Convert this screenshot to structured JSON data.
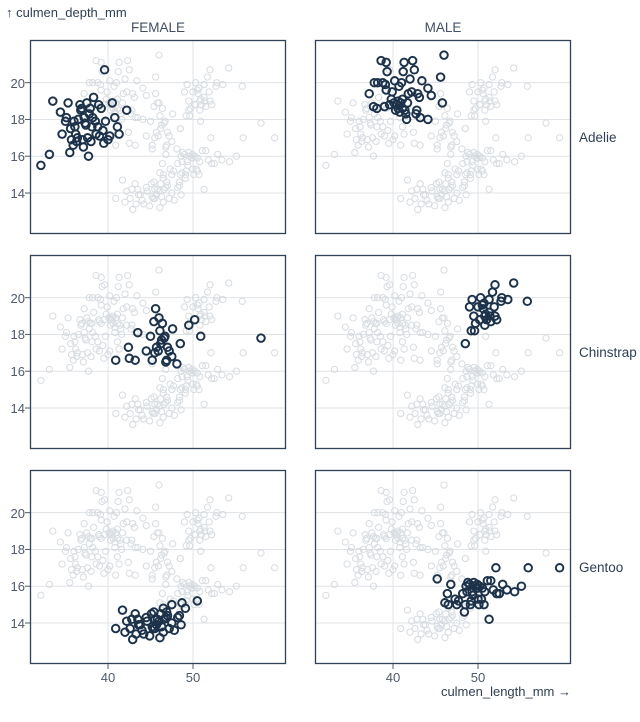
{
  "colors": {
    "highlight": "#1c324a",
    "background_point": "#cdd3da",
    "frame": "#2f4258",
    "grid": "#e0e3e7",
    "tick_label": "#4d5b6b",
    "header_text": "#415062",
    "label_text": "#2e3f53"
  },
  "chart_data": {
    "type": "scatter",
    "y_axis_title": "↑ culmen_depth_mm",
    "x_axis_title": "culmen_length_mm →",
    "xlabel": "culmen_length_mm",
    "ylabel": "culmen_depth_mm",
    "facet_columns": [
      "FEMALE",
      "MALE"
    ],
    "facet_rows": [
      "Adelie",
      "Chinstrap",
      "Gentoo"
    ],
    "x_ticks": [
      40,
      50
    ],
    "y_ticks": [
      14,
      16,
      18,
      20
    ],
    "xlim": [
      30.82,
      60.94
    ],
    "ylim": [
      11.77,
      22.32
    ],
    "grid": true,
    "legend": "none",
    "note": "Each facet highlights that species+sex subset in dark navy open circles over all penguins shown as faint gray open circles.",
    "series": [
      {
        "species": "Adelie",
        "sex": "FEMALE",
        "points": [
          [
            32.1,
            15.5
          ],
          [
            33.1,
            16.1
          ],
          [
            33.5,
            19.0
          ],
          [
            34.4,
            18.4
          ],
          [
            34.6,
            17.2
          ],
          [
            35.0,
            17.9
          ],
          [
            35.1,
            18.1
          ],
          [
            35.3,
            18.9
          ],
          [
            35.5,
            16.2
          ],
          [
            35.6,
            17.5
          ],
          [
            35.7,
            16.9
          ],
          [
            35.9,
            16.6
          ],
          [
            36.0,
            17.9
          ],
          [
            36.1,
            17.6
          ],
          [
            36.2,
            17.2
          ],
          [
            36.3,
            16.8
          ],
          [
            36.4,
            17.0
          ],
          [
            36.5,
            18.0
          ],
          [
            36.7,
            18.8
          ],
          [
            36.8,
            18.5
          ],
          [
            36.9,
            18.6
          ],
          [
            37.0,
            16.9
          ],
          [
            37.1,
            16.5
          ],
          [
            37.2,
            18.1
          ],
          [
            37.3,
            17.8
          ],
          [
            37.4,
            17.7
          ],
          [
            37.5,
            18.9
          ],
          [
            37.6,
            17.0
          ],
          [
            37.7,
            16.0
          ],
          [
            37.8,
            18.3
          ],
          [
            37.9,
            18.6
          ],
          [
            38.0,
            16.8
          ],
          [
            38.1,
            17.6
          ],
          [
            38.2,
            18.1
          ],
          [
            38.3,
            19.2
          ],
          [
            38.5,
            17.9
          ],
          [
            38.6,
            17.2
          ],
          [
            38.8,
            17.6
          ],
          [
            38.9,
            18.8
          ],
          [
            39.0,
            17.1
          ],
          [
            39.2,
            18.6
          ],
          [
            39.4,
            17.4
          ],
          [
            39.5,
            16.7
          ],
          [
            39.6,
            20.7
          ],
          [
            39.7,
            17.9
          ],
          [
            40.0,
            16.9
          ],
          [
            40.2,
            17.1
          ],
          [
            40.5,
            18.9
          ],
          [
            40.8,
            18.1
          ],
          [
            41.1,
            17.6
          ],
          [
            41.3,
            17.2
          ],
          [
            42.2,
            18.5
          ]
        ]
      },
      {
        "species": "Adelie",
        "sex": "MALE",
        "points": [
          [
            37.2,
            19.4
          ],
          [
            37.7,
            18.7
          ],
          [
            37.8,
            20.0
          ],
          [
            38.1,
            18.6
          ],
          [
            38.2,
            20.0
          ],
          [
            38.6,
            21.2
          ],
          [
            38.8,
            20.0
          ],
          [
            39.0,
            18.7
          ],
          [
            39.1,
            19.9
          ],
          [
            39.2,
            19.6
          ],
          [
            39.2,
            21.1
          ],
          [
            39.3,
            20.6
          ],
          [
            39.6,
            18.8
          ],
          [
            39.8,
            19.1
          ],
          [
            39.9,
            19.5
          ],
          [
            40.1,
            18.9
          ],
          [
            40.2,
            20.1
          ],
          [
            40.3,
            18.5
          ],
          [
            40.4,
            18.8
          ],
          [
            40.6,
            18.6
          ],
          [
            40.6,
            19.0
          ],
          [
            40.7,
            19.8
          ],
          [
            40.8,
            18.4
          ],
          [
            40.9,
            18.9
          ],
          [
            41.0,
            20.0
          ],
          [
            41.1,
            18.6
          ],
          [
            41.1,
            19.1
          ],
          [
            41.2,
            20.6
          ],
          [
            41.3,
            21.1
          ],
          [
            41.4,
            18.5
          ],
          [
            41.5,
            18.3
          ],
          [
            41.6,
            18.0
          ],
          [
            41.7,
            18.9
          ],
          [
            41.8,
            19.4
          ],
          [
            42.0,
            20.2
          ],
          [
            42.2,
            19.5
          ],
          [
            42.3,
            21.2
          ],
          [
            42.5,
            20.7
          ],
          [
            42.7,
            18.3
          ],
          [
            42.8,
            18.5
          ],
          [
            42.9,
            19.4
          ],
          [
            43.1,
            19.2
          ],
          [
            43.2,
            18.1
          ],
          [
            43.4,
            20.1
          ],
          [
            44.1,
            19.7
          ],
          [
            44.1,
            18.0
          ],
          [
            44.5,
            19.3
          ],
          [
            45.6,
            20.3
          ],
          [
            45.8,
            18.9
          ],
          [
            46.0,
            21.5
          ]
        ]
      },
      {
        "species": "Chinstrap",
        "sex": "FEMALE",
        "points": [
          [
            40.9,
            16.6
          ],
          [
            42.4,
            17.3
          ],
          [
            42.5,
            16.7
          ],
          [
            43.2,
            16.6
          ],
          [
            43.5,
            18.1
          ],
          [
            44.5,
            17.1
          ],
          [
            45.0,
            17.9
          ],
          [
            45.2,
            16.6
          ],
          [
            45.4,
            18.7
          ],
          [
            45.5,
            17.0
          ],
          [
            45.6,
            19.4
          ],
          [
            45.7,
            17.3
          ],
          [
            45.9,
            17.1
          ],
          [
            46.0,
            18.9
          ],
          [
            46.1,
            18.2
          ],
          [
            46.2,
            17.5
          ],
          [
            46.3,
            17.7
          ],
          [
            46.4,
            18.6
          ],
          [
            46.6,
            17.8
          ],
          [
            46.7,
            17.9
          ],
          [
            46.8,
            16.5
          ],
          [
            46.9,
            16.6
          ],
          [
            47.0,
            17.3
          ],
          [
            47.2,
            17.1
          ],
          [
            47.5,
            16.8
          ],
          [
            47.6,
            18.3
          ],
          [
            48.1,
            16.4
          ],
          [
            48.5,
            17.5
          ],
          [
            49.5,
            18.5
          ],
          [
            50.2,
            18.8
          ],
          [
            50.9,
            17.9
          ],
          [
            58.0,
            17.8
          ]
        ]
      },
      {
        "species": "Chinstrap",
        "sex": "MALE",
        "points": [
          [
            48.5,
            17.5
          ],
          [
            49.0,
            19.5
          ],
          [
            49.2,
            18.2
          ],
          [
            49.3,
            19.9
          ],
          [
            49.5,
            19.0
          ],
          [
            49.6,
            18.2
          ],
          [
            49.7,
            18.6
          ],
          [
            50.0,
            19.5
          ],
          [
            50.2,
            18.8
          ],
          [
            50.3,
            20.0
          ],
          [
            50.5,
            19.6
          ],
          [
            50.6,
            19.4
          ],
          [
            50.7,
            19.7
          ],
          [
            50.8,
            19.0
          ],
          [
            50.8,
            18.5
          ],
          [
            50.9,
            19.1
          ],
          [
            51.0,
            18.8
          ],
          [
            51.3,
            19.2
          ],
          [
            51.3,
            19.9
          ],
          [
            51.4,
            19.0
          ],
          [
            51.5,
            18.7
          ],
          [
            51.7,
            20.3
          ],
          [
            51.9,
            19.5
          ],
          [
            52.0,
            19.0
          ],
          [
            52.0,
            20.7
          ],
          [
            52.2,
            18.8
          ],
          [
            52.7,
            19.8
          ],
          [
            52.8,
            20.0
          ],
          [
            53.5,
            19.9
          ],
          [
            54.2,
            20.8
          ],
          [
            55.8,
            19.8
          ]
        ]
      },
      {
        "species": "Gentoo",
        "sex": "FEMALE",
        "points": [
          [
            40.9,
            13.7
          ],
          [
            41.7,
            14.7
          ],
          [
            42.0,
            13.5
          ],
          [
            42.2,
            14.1
          ],
          [
            42.6,
            13.7
          ],
          [
            42.8,
            14.2
          ],
          [
            42.9,
            13.1
          ],
          [
            43.2,
            14.5
          ],
          [
            43.3,
            13.4
          ],
          [
            43.5,
            14.2
          ],
          [
            43.6,
            13.9
          ],
          [
            43.8,
            13.9
          ],
          [
            44.0,
            13.6
          ],
          [
            44.2,
            13.4
          ],
          [
            44.5,
            14.3
          ],
          [
            44.6,
            14.1
          ],
          [
            44.9,
            13.3
          ],
          [
            45.1,
            14.5
          ],
          [
            45.2,
            13.8
          ],
          [
            45.3,
            13.7
          ],
          [
            45.4,
            14.6
          ],
          [
            45.5,
            13.7
          ],
          [
            45.5,
            14.2
          ],
          [
            45.7,
            13.9
          ],
          [
            45.8,
            14.2
          ],
          [
            46.0,
            14.1
          ],
          [
            46.1,
            13.2
          ],
          [
            46.2,
            14.5
          ],
          [
            46.3,
            13.8
          ],
          [
            46.5,
            13.5
          ],
          [
            46.5,
            14.8
          ],
          [
            46.6,
            14.2
          ],
          [
            46.8,
            14.3
          ],
          [
            46.9,
            14.6
          ],
          [
            47.0,
            14.4
          ],
          [
            47.2,
            13.7
          ],
          [
            47.5,
            14.0
          ],
          [
            47.5,
            15.0
          ],
          [
            47.8,
            13.6
          ],
          [
            48.2,
            14.3
          ],
          [
            48.4,
            14.4
          ],
          [
            48.6,
            13.9
          ],
          [
            48.7,
            15.1
          ],
          [
            49.1,
            14.8
          ],
          [
            50.5,
            15.2
          ]
        ]
      },
      {
        "species": "Gentoo",
        "sex": "MALE",
        "points": [
          [
            45.2,
            16.4
          ],
          [
            46.1,
            15.1
          ],
          [
            46.4,
            15.6
          ],
          [
            46.5,
            15.0
          ],
          [
            46.8,
            16.1
          ],
          [
            47.3,
            15.3
          ],
          [
            47.5,
            15.0
          ],
          [
            47.7,
            15.2
          ],
          [
            48.2,
            15.6
          ],
          [
            48.4,
            14.6
          ],
          [
            48.5,
            15.0
          ],
          [
            48.6,
            16.0
          ],
          [
            48.7,
            15.7
          ],
          [
            48.8,
            16.2
          ],
          [
            49.0,
            16.1
          ],
          [
            49.1,
            15.0
          ],
          [
            49.2,
            15.2
          ],
          [
            49.3,
            15.7
          ],
          [
            49.4,
            15.5
          ],
          [
            49.5,
            16.2
          ],
          [
            49.6,
            16.0
          ],
          [
            49.8,
            15.9
          ],
          [
            49.9,
            16.1
          ],
          [
            50.0,
            15.3
          ],
          [
            50.0,
            15.9
          ],
          [
            50.1,
            15.0
          ],
          [
            50.2,
            16.0
          ],
          [
            50.4,
            15.3
          ],
          [
            50.5,
            15.9
          ],
          [
            50.7,
            15.0
          ],
          [
            50.8,
            15.7
          ],
          [
            51.1,
            16.3
          ],
          [
            51.3,
            14.2
          ],
          [
            51.5,
            16.3
          ],
          [
            51.8,
            15.8
          ],
          [
            52.1,
            17.0
          ],
          [
            52.2,
            15.6
          ],
          [
            52.5,
            15.6
          ],
          [
            52.9,
            16.1
          ],
          [
            53.4,
            15.8
          ],
          [
            54.3,
            15.7
          ],
          [
            55.1,
            16.0
          ],
          [
            55.9,
            17.0
          ],
          [
            59.6,
            17.0
          ]
        ]
      }
    ]
  }
}
